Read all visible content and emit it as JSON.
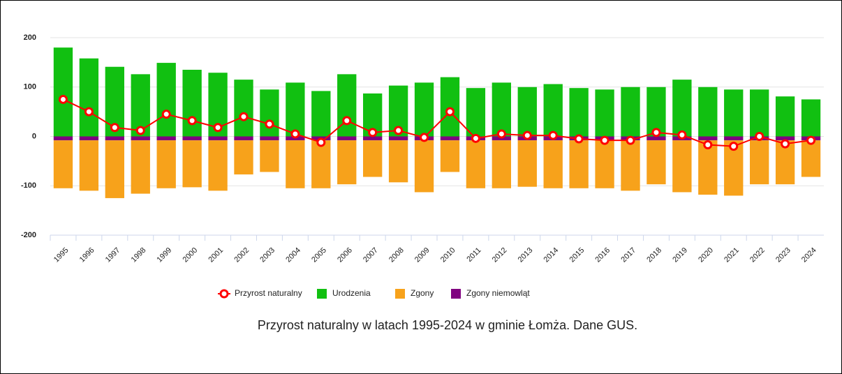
{
  "chart_data": {
    "type": "bar",
    "caption": "Przyrost naturalny w latach 1995-2024 w gminie Łomża. Dane GUS.",
    "categories": [
      "1995",
      "1996",
      "1997",
      "1998",
      "1999",
      "2000",
      "2001",
      "2002",
      "2003",
      "2004",
      "2005",
      "2006",
      "2007",
      "2008",
      "2009",
      "2010",
      "2011",
      "2012",
      "2013",
      "2014",
      "2015",
      "2016",
      "2017",
      "2018",
      "2019",
      "2020",
      "2021",
      "2022",
      "2023",
      "2024"
    ],
    "ylim": [
      -200,
      200
    ],
    "yticks": [
      -200,
      -100,
      0,
      100,
      200
    ],
    "grid": true,
    "series": [
      {
        "name": "Przyrost naturalny",
        "color": "#ff0000",
        "kind": "line",
        "values": [
          75,
          50,
          18,
          12,
          45,
          32,
          18,
          40,
          25,
          5,
          -12,
          32,
          8,
          12,
          -2,
          50,
          -4,
          5,
          2,
          2,
          -5,
          -8,
          -8,
          8,
          3,
          -17,
          -20,
          0,
          -15,
          -8
        ]
      },
      {
        "name": "Urodzenia",
        "color": "#11c011",
        "kind": "bar",
        "values": [
          180,
          158,
          141,
          126,
          149,
          135,
          129,
          115,
          95,
          109,
          92,
          126,
          87,
          103,
          109,
          120,
          98,
          109,
          100,
          106,
          98,
          95,
          100,
          100,
          115,
          100,
          95,
          95,
          81,
          75
        ]
      },
      {
        "name": "Zgony",
        "color": "#f7a21b",
        "kind": "bar",
        "values": [
          -97,
          -102,
          -117,
          -108,
          -97,
          -95,
          -102,
          -69,
          -64,
          -97,
          -97,
          -89,
          -74,
          -85,
          -105,
          -64,
          -97,
          -97,
          -94,
          -97,
          -97,
          -97,
          -102,
          -89,
          -105,
          -110,
          -112,
          -89,
          -89,
          -74
        ]
      },
      {
        "name": "Zgony niemowląt",
        "color": "#800080",
        "kind": "bar",
        "values": [
          -8,
          -8,
          -8,
          -8,
          -8,
          -8,
          -8,
          -8,
          -8,
          -8,
          -8,
          -8,
          -8,
          -8,
          -8,
          -8,
          -8,
          -8,
          -8,
          -8,
          -8,
          -8,
          -8,
          -8,
          -8,
          -8,
          -8,
          -8,
          -8,
          -8
        ]
      }
    ]
  }
}
